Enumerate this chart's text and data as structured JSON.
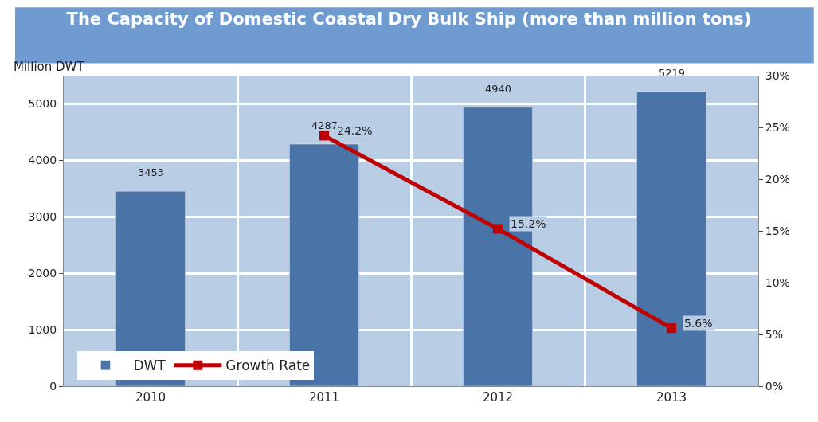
{
  "chart_data": {
    "type": "bar",
    "title": "The Capacity of Domestic Coastal Dry Bulk Ship (more than million tons)",
    "ylabel": "Million DWT",
    "categories": [
      "2010",
      "2011",
      "2012",
      "2013"
    ],
    "series": [
      {
        "name": "DWT",
        "color": "#4a74a8",
        "values": [
          3453,
          4287,
          4940,
          5219
        ],
        "data_labels": true
      },
      {
        "name": "Growth Rate",
        "type": "line",
        "axis": "y2",
        "color": "#c00000",
        "marker": "square",
        "values": [
          null,
          24.2,
          15.2,
          5.6
        ],
        "value_labels": [
          null,
          "24.2%",
          "15.2%",
          "5.6%"
        ]
      }
    ],
    "ylim": [
      0,
      5500
    ],
    "yticks": [
      0,
      1000,
      2000,
      3000,
      4000,
      5000
    ],
    "y2lim": [
      0,
      30
    ],
    "y2ticks": [
      {
        "value": 0,
        "label": "0%"
      },
      {
        "value": 5,
        "label": "5%"
      },
      {
        "value": 10,
        "label": "10%"
      },
      {
        "value": 15,
        "label": "15%"
      },
      {
        "value": 20,
        "label": "20%"
      },
      {
        "value": 25,
        "label": "25%"
      },
      {
        "value": 30,
        "label": "30%"
      }
    ],
    "grid": true,
    "legend": "bottom left"
  }
}
